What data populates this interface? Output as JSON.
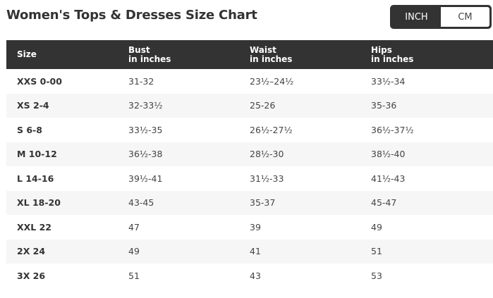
{
  "title": "Women's Tops & Dresses Size Chart",
  "unit_toggle": {
    "options": [
      "INCH",
      "CM"
    ],
    "selected": "INCH"
  },
  "table": {
    "headers": [
      {
        "label": "Size",
        "sub": ""
      },
      {
        "label": "Bust",
        "sub": "in inches"
      },
      {
        "label": "Waist",
        "sub": "in inches"
      },
      {
        "label": "Hips",
        "sub": "in inches"
      }
    ],
    "rows": [
      [
        "XXS 0-00",
        "31-32",
        "23½–24½",
        "33½-34"
      ],
      [
        "XS 2-4",
        "32-33½",
        "25-26",
        "35-36"
      ],
      [
        "S 6-8",
        "33½-35",
        "26½-27½",
        "36½-37½"
      ],
      [
        "M 10-12",
        "36½-38",
        "28½-30",
        "38½-40"
      ],
      [
        "L 14-16",
        "39½-41",
        "31½-33",
        "41½-43"
      ],
      [
        "XL 18-20",
        "43-45",
        "35-37",
        "45-47"
      ],
      [
        "XXL 22",
        "47",
        "39",
        "49"
      ],
      [
        "2X 24",
        "49",
        "41",
        "51"
      ],
      [
        "3X 26",
        "51",
        "43",
        "53"
      ]
    ]
  },
  "colors": {
    "header_bg": "#333333",
    "stripe": "#f6f6f6"
  }
}
